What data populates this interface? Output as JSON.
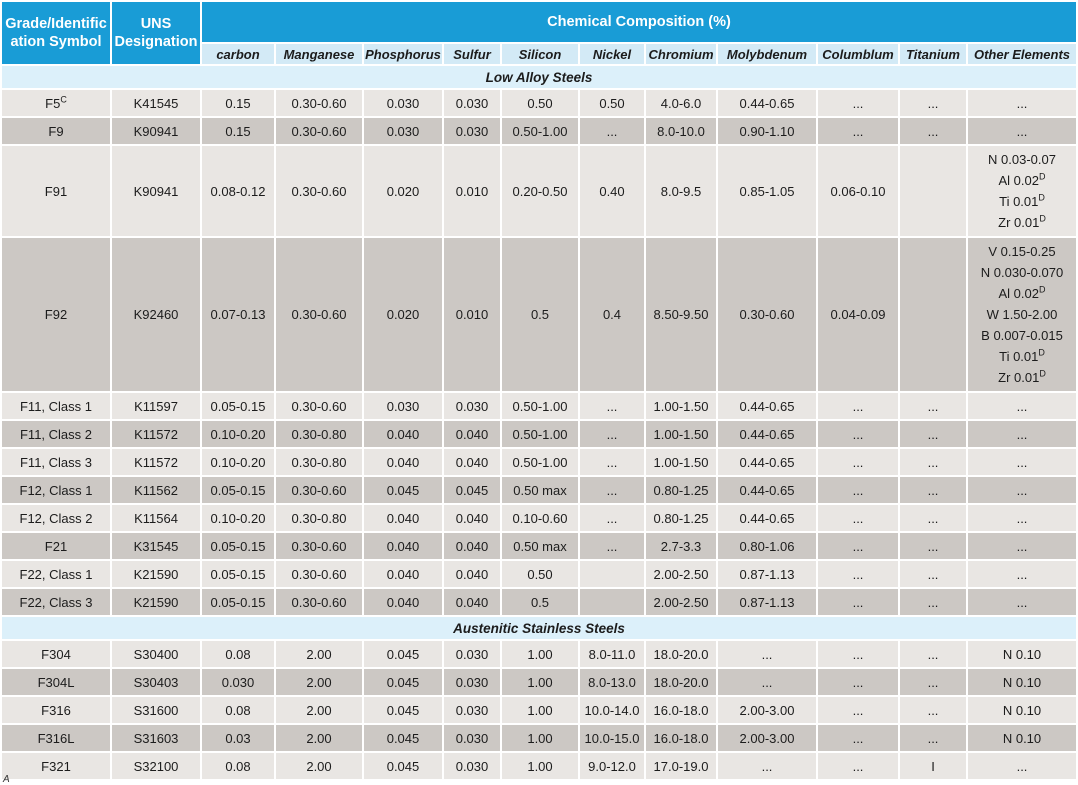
{
  "colors": {
    "header_teal": "#199CD6",
    "subheader_blue": "#D3EAF6",
    "section_blue": "#DCF0FA",
    "row_light": "#E9E6E3",
    "row_dark": "#CCC8C4"
  },
  "page": {
    "corner_mark": "A"
  },
  "table": {
    "header": {
      "grade": "Grade/Identification Symbol",
      "uns": "UNS Designation",
      "chem": "Chemical Composition (%)",
      "columns": [
        "carbon",
        "Manganese",
        "Phosphorus",
        "Sulfur",
        "Silicon",
        "Nickel",
        "Chromium",
        "Molybdenum",
        "Columblum",
        "Titanium",
        "Other Elements"
      ]
    },
    "sections": [
      {
        "title": "Low Alloy Steels",
        "rows": [
          {
            "grade": "F5",
            "grade_sup": "C",
            "uns": "K41545",
            "cells": [
              "0.15",
              "0.30-0.60",
              "0.030",
              "0.030",
              "0.50",
              "0.50",
              "4.0-6.0",
              "0.44-0.65",
              "...",
              "...",
              "..."
            ]
          },
          {
            "grade": "F9",
            "uns": "K90941",
            "cells": [
              "0.15",
              "0.30-0.60",
              "0.030",
              "0.030",
              "0.50-1.00",
              "...",
              "8.0-10.0",
              "0.90-1.10",
              "...",
              "...",
              "..."
            ]
          },
          {
            "grade": "F91",
            "uns": "K90941",
            "cells": [
              "0.08-0.12",
              "0.30-0.60",
              "0.020",
              "0.010",
              "0.20-0.50",
              "0.40",
              "8.0-9.5",
              "0.85-1.05",
              "0.06-0.10",
              "",
              {
                "lines": [
                  {
                    "t": "N 0.03-0.07"
                  },
                  {
                    "t": "Al 0.02",
                    "sup": "D"
                  },
                  {
                    "t": "Ti 0.01",
                    "sup": "D"
                  },
                  {
                    "t": "Zr 0.01",
                    "sup": "D"
                  }
                ]
              }
            ]
          },
          {
            "grade": "F92",
            "uns": "K92460",
            "cells": [
              "0.07-0.13",
              "0.30-0.60",
              "0.020",
              "0.010",
              "0.5",
              "0.4",
              "8.50-9.50",
              "0.30-0.60",
              "0.04-0.09",
              "",
              {
                "lines": [
                  {
                    "t": "V 0.15-0.25"
                  },
                  {
                    "t": "N 0.030-0.070"
                  },
                  {
                    "t": "Al 0.02",
                    "sup": "D"
                  },
                  {
                    "t": "W 1.50-2.00"
                  },
                  {
                    "t": "B 0.007-0.015"
                  },
                  {
                    "t": "Ti 0.01",
                    "sup": "D"
                  },
                  {
                    "t": "Zr 0.01",
                    "sup": "D"
                  }
                ]
              }
            ]
          },
          {
            "grade": "F11, Class 1",
            "uns": "K11597",
            "cells": [
              "0.05-0.15",
              "0.30-0.60",
              "0.030",
              "0.030",
              "0.50-1.00",
              "...",
              "1.00-1.50",
              "0.44-0.65",
              "...",
              "...",
              "..."
            ]
          },
          {
            "grade": "F11, Class 2",
            "uns": "K11572",
            "cells": [
              "0.10-0.20",
              "0.30-0.80",
              "0.040",
              "0.040",
              "0.50-1.00",
              "...",
              "1.00-1.50",
              "0.44-0.65",
              "...",
              "...",
              "..."
            ]
          },
          {
            "grade": "F11, Class 3",
            "uns": "K11572",
            "cells": [
              "0.10-0.20",
              "0.30-0.80",
              "0.040",
              "0.040",
              "0.50-1.00",
              "...",
              "1.00-1.50",
              "0.44-0.65",
              "...",
              "...",
              "..."
            ]
          },
          {
            "grade": "F12, Class 1",
            "uns": "K11562",
            "cells": [
              "0.05-0.15",
              "0.30-0.60",
              "0.045",
              "0.045",
              "0.50 max",
              "...",
              "0.80-1.25",
              "0.44-0.65",
              "...",
              "...",
              "..."
            ]
          },
          {
            "grade": "F12, Class 2",
            "uns": "K11564",
            "cells": [
              "0.10-0.20",
              "0.30-0.80",
              "0.040",
              "0.040",
              "0.10-0.60",
              "...",
              "0.80-1.25",
              "0.44-0.65",
              "...",
              "...",
              "..."
            ]
          },
          {
            "grade": "F21",
            "uns": "K31545",
            "cells": [
              "0.05-0.15",
              "0.30-0.60",
              "0.040",
              "0.040",
              "0.50 max",
              "...",
              "2.7-3.3",
              "0.80-1.06",
              "...",
              "...",
              "..."
            ]
          },
          {
            "grade": "F22, Class 1",
            "uns": "K21590",
            "cells": [
              "0.05-0.15",
              "0.30-0.60",
              "0.040",
              "0.040",
              "0.50",
              "",
              "2.00-2.50",
              "0.87-1.13",
              "...",
              "...",
              "..."
            ]
          },
          {
            "grade": "F22, Class 3",
            "uns": "K21590",
            "cells": [
              "0.05-0.15",
              "0.30-0.60",
              "0.040",
              "0.040",
              "0.5",
              "",
              "2.00-2.50",
              "0.87-1.13",
              "...",
              "...",
              "..."
            ]
          }
        ]
      },
      {
        "title": "Austenitic Stainless Steels",
        "rows": [
          {
            "grade": "F304",
            "uns": "S30400",
            "cells": [
              "0.08",
              "2.00",
              "0.045",
              "0.030",
              "1.00",
              "8.0-11.0",
              "18.0-20.0",
              "...",
              "...",
              "...",
              "N 0.10"
            ]
          },
          {
            "grade": "F304L",
            "uns": "S30403",
            "cells": [
              "0.030",
              "2.00",
              "0.045",
              "0.030",
              "1.00",
              "8.0-13.0",
              "18.0-20.0",
              "...",
              "...",
              "...",
              "N 0.10"
            ]
          },
          {
            "grade": "F316",
            "uns": "S31600",
            "cells": [
              "0.08",
              "2.00",
              "0.045",
              "0.030",
              "1.00",
              "10.0-14.0",
              "16.0-18.0",
              "2.00-3.00",
              "...",
              "...",
              "N 0.10"
            ]
          },
          {
            "grade": "F316L",
            "uns": "S31603",
            "cells": [
              "0.03",
              "2.00",
              "0.045",
              "0.030",
              "1.00",
              "10.0-15.0",
              "16.0-18.0",
              "2.00-3.00",
              "...",
              "...",
              "N 0.10"
            ]
          },
          {
            "grade": "F321",
            "uns": "S32100",
            "cells": [
              "0.08",
              "2.00",
              "0.045",
              "0.030",
              "1.00",
              "9.0-12.0",
              "17.0-19.0",
              "...",
              "...",
              "I",
              "..."
            ]
          }
        ]
      }
    ]
  }
}
